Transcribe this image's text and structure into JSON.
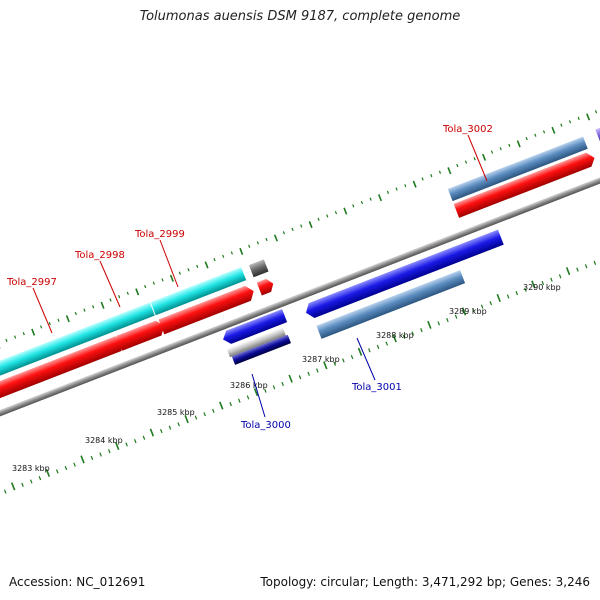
{
  "title": "Tolumonas auensis DSM 9187, complete genome",
  "footer": {
    "accession": "Accession: NC_012691",
    "stats": "Topology: circular; Length: 3,471,292 bp; Genes: 3,246"
  },
  "colors": {
    "backbone": "#8a8a8a",
    "tick": "#1e7a1e",
    "label_forward": "#cc0000",
    "label_reverse": "#0000aa"
  },
  "ticks": [
    {
      "label": "3283 kbp"
    },
    {
      "label": "3284 kbp"
    },
    {
      "label": "3285 kbp"
    },
    {
      "label": "3286 kbp"
    },
    {
      "label": "3287 kbp"
    },
    {
      "label": "3288 kbp"
    },
    {
      "label": "3289 kbp"
    },
    {
      "label": "3290 kbp"
    }
  ],
  "gene_labels": [
    {
      "name": "Tola_2997",
      "strand": "forward"
    },
    {
      "name": "Tola_2998",
      "strand": "forward"
    },
    {
      "name": "Tola_2999",
      "strand": "forward"
    },
    {
      "name": "Tola_3000",
      "strand": "reverse"
    },
    {
      "name": "Tola_3001",
      "strand": "reverse"
    },
    {
      "name": "Tola_3002",
      "strand": "forward"
    }
  ],
  "features": [
    {
      "id": "cyan-left",
      "color": "#22dddd"
    },
    {
      "id": "cyan-right",
      "color": "#22dddd"
    },
    {
      "id": "red-cds-1",
      "color": "#ee0000"
    },
    {
      "id": "red-cds-2",
      "color": "#ee0000"
    },
    {
      "id": "red-cds-3",
      "color": "#ee0000"
    },
    {
      "id": "red-cds-small",
      "color": "#ee0000"
    },
    {
      "id": "grey-small",
      "color": "#666666"
    },
    {
      "id": "blue-1",
      "color": "#1111dd"
    },
    {
      "id": "blue-2",
      "color": "#1111dd"
    },
    {
      "id": "silver",
      "color": "#bbbbbb"
    },
    {
      "id": "navy",
      "color": "#000088"
    },
    {
      "id": "steel-1",
      "color": "#5b8cbf"
    },
    {
      "id": "steel-2",
      "color": "#5b8cbf"
    },
    {
      "id": "red-cds-4",
      "color": "#ee0000"
    },
    {
      "id": "red-cds-5",
      "color": "#ee0000"
    },
    {
      "id": "violet",
      "color": "#7a5cd6"
    }
  ]
}
